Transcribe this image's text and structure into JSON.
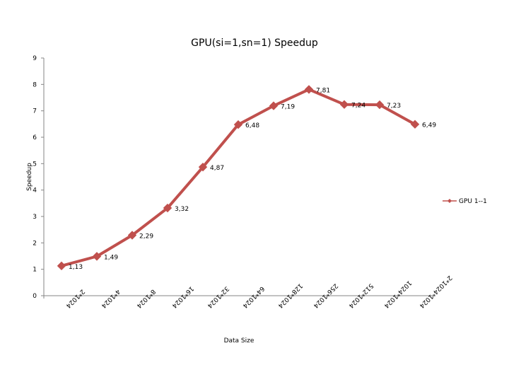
{
  "chart_data": {
    "type": "line",
    "title": "GPU(si=1,sn=1) Speedup",
    "xlabel": "Data Size",
    "ylabel": "Speedup",
    "categories": [
      "2*1024",
      "4*1024",
      "8*1024",
      "16*1024",
      "32*1024",
      "64*1024",
      "128*1024",
      "256*1024",
      "512*1024",
      "1024*1024",
      "2*1024*1024"
    ],
    "series": [
      {
        "name": "GPU 1--1",
        "values": [
          1.13,
          1.49,
          2.29,
          3.32,
          4.87,
          6.48,
          7.19,
          7.81,
          7.24,
          7.23,
          6.49
        ],
        "labels": [
          "1,13",
          "1,49",
          "2,29",
          "3,32",
          "4,87",
          "6,48",
          "7,19",
          "7,81",
          "7,24",
          "7,23",
          "6,49"
        ]
      }
    ],
    "ylim": [
      0,
      9
    ],
    "yticks": [
      "0",
      "1",
      "2",
      "3",
      "4",
      "5",
      "6",
      "7",
      "8",
      "9"
    ],
    "grid": false,
    "legend": "right",
    "colors": {
      "series": "#c0504d",
      "axis": "#868686"
    }
  }
}
